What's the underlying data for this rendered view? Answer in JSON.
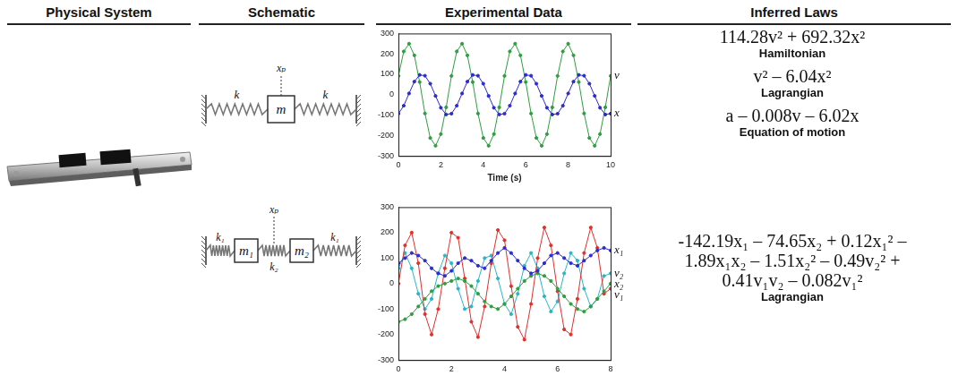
{
  "headers": [
    "Physical System",
    "Schematic",
    "Experimental Data",
    "Inferred Laws"
  ],
  "schematics": [
    {
      "springs": [
        "k",
        "k"
      ],
      "masses": [
        "m"
      ],
      "coordinate": "xₚ"
    },
    {
      "springs": [
        "k₁",
        "k₂",
        "k₁"
      ],
      "masses": [
        "m₁",
        "m₂"
      ],
      "coordinate": "xₚ"
    }
  ],
  "chart_data": [
    {
      "type": "line",
      "xlabel": "Time (s)",
      "grid": false,
      "xlim": [
        0,
        10
      ],
      "xticks": [
        0,
        2,
        4,
        6,
        8,
        10
      ],
      "ylim": [
        -300,
        300
      ],
      "yticks": [
        -300,
        -200,
        -100,
        0,
        100,
        200,
        300
      ],
      "x": [
        0,
        0.25,
        0.5,
        0.75,
        1,
        1.25,
        1.5,
        1.75,
        2,
        2.25,
        2.5,
        2.75,
        3,
        3.25,
        3.5,
        3.75,
        4,
        4.25,
        4.5,
        4.75,
        5,
        5.25,
        5.5,
        5.75,
        6,
        6.25,
        6.5,
        6.75,
        7,
        7.25,
        7.5,
        7.75,
        8,
        8.25,
        8.5,
        8.75,
        9,
        9.25,
        9.5,
        9.75,
        10
      ],
      "series": [
        {
          "name": "x",
          "color": "#2b2bd0",
          "marker": "circle",
          "line_style": "solid",
          "values": [
            -93,
            -54,
            6,
            64,
            97,
            93,
            54,
            -6,
            -64,
            -97,
            -93,
            -54,
            6,
            64,
            97,
            93,
            54,
            -6,
            -64,
            -97,
            -93,
            -54,
            6,
            64,
            97,
            93,
            54,
            -6,
            -64,
            -97,
            -93,
            -54,
            6,
            64,
            97,
            93,
            54,
            -6,
            -64,
            -97,
            -93
          ]
        },
        {
          "name": "v",
          "color": "#2e9e3e",
          "marker": "circle",
          "line_style": "solid",
          "values": [
            92,
            212,
            250,
            193,
            62,
            -92,
            -212,
            -250,
            -193,
            -62,
            92,
            212,
            250,
            193,
            62,
            -92,
            -212,
            -250,
            -193,
            -62,
            92,
            212,
            250,
            193,
            62,
            -92,
            -212,
            -250,
            -193,
            -62,
            92,
            212,
            250,
            193,
            62,
            -92,
            -212,
            -250,
            -193,
            -62,
            92
          ]
        }
      ]
    },
    {
      "type": "line",
      "grid": false,
      "xlim": [
        0,
        8
      ],
      "xticks": [
        0,
        2,
        4,
        6,
        8
      ],
      "ylim": [
        -300,
        300
      ],
      "yticks": [
        -300,
        -200,
        -100,
        0,
        100,
        200,
        300
      ],
      "x": [
        0,
        0.25,
        0.5,
        0.75,
        1,
        1.25,
        1.5,
        1.75,
        2,
        2.25,
        2.5,
        2.75,
        3,
        3.25,
        3.5,
        3.75,
        4,
        4.25,
        4.5,
        4.75,
        5,
        5.25,
        5.5,
        5.75,
        6,
        6.25,
        6.5,
        6.75,
        7,
        7.25,
        7.5,
        7.75,
        8
      ],
      "series": [
        {
          "name": "x₁",
          "color": "#2b2bd0",
          "marker": "circle",
          "line_style": "solid",
          "values": [
            80,
            100,
            120,
            110,
            90,
            60,
            40,
            30,
            50,
            80,
            100,
            90,
            70,
            60,
            90,
            120,
            140,
            120,
            90,
            60,
            40,
            50,
            80,
            110,
            120,
            100,
            80,
            70,
            90,
            110,
            130,
            140,
            130
          ]
        },
        {
          "name": "x₂",
          "color": "#2e9e3e",
          "marker": "circle",
          "line_style": "solid",
          "values": [
            -150,
            -140,
            -120,
            -90,
            -60,
            -30,
            -10,
            0,
            10,
            20,
            10,
            -10,
            -40,
            -70,
            -90,
            -100,
            -80,
            -50,
            -20,
            10,
            30,
            40,
            30,
            10,
            -20,
            -50,
            -80,
            -100,
            -110,
            -90,
            -60,
            -30,
            0
          ]
        },
        {
          "name": "v₁",
          "color": "#e0302c",
          "marker": "circle",
          "line_style": "solid",
          "values": [
            0,
            150,
            200,
            80,
            -120,
            -200,
            -100,
            60,
            200,
            180,
            20,
            -150,
            -210,
            -90,
            80,
            210,
            170,
            -10,
            -170,
            -220,
            -80,
            100,
            220,
            150,
            -30,
            -180,
            -200,
            -60,
            120,
            220,
            140,
            -40,
            -20
          ]
        },
        {
          "name": "v₂",
          "color": "#28b6c8",
          "marker": "circle",
          "line_style": "solid",
          "values": [
            60,
            120,
            60,
            -40,
            -100,
            -60,
            40,
            110,
            80,
            -20,
            -100,
            -90,
            10,
            100,
            110,
            20,
            -80,
            -120,
            -40,
            70,
            120,
            60,
            -50,
            -110,
            -70,
            40,
            120,
            90,
            -20,
            -90,
            -60,
            30,
            40
          ]
        }
      ]
    }
  ],
  "laws": [
    [
      {
        "expression": [
          "114.28v² + 692.32x²"
        ],
        "name": "Hamiltonian"
      },
      {
        "expression": [
          "v² – 6.04x²"
        ],
        "name": "Lagrangian"
      },
      {
        "expression": [
          "a – 0.008v – 6.02x"
        ],
        "name": "Equation of motion"
      }
    ],
    [
      {
        "expression": [
          "-142.19x₁ – 74.65x₂ + 0.12x₁² –",
          "1.89x₁x₂ – 1.51x₂² – 0.49v₂² +",
          "0.41v₁v₂ – 0.082v₁²"
        ],
        "name": "Lagrangian"
      }
    ]
  ]
}
